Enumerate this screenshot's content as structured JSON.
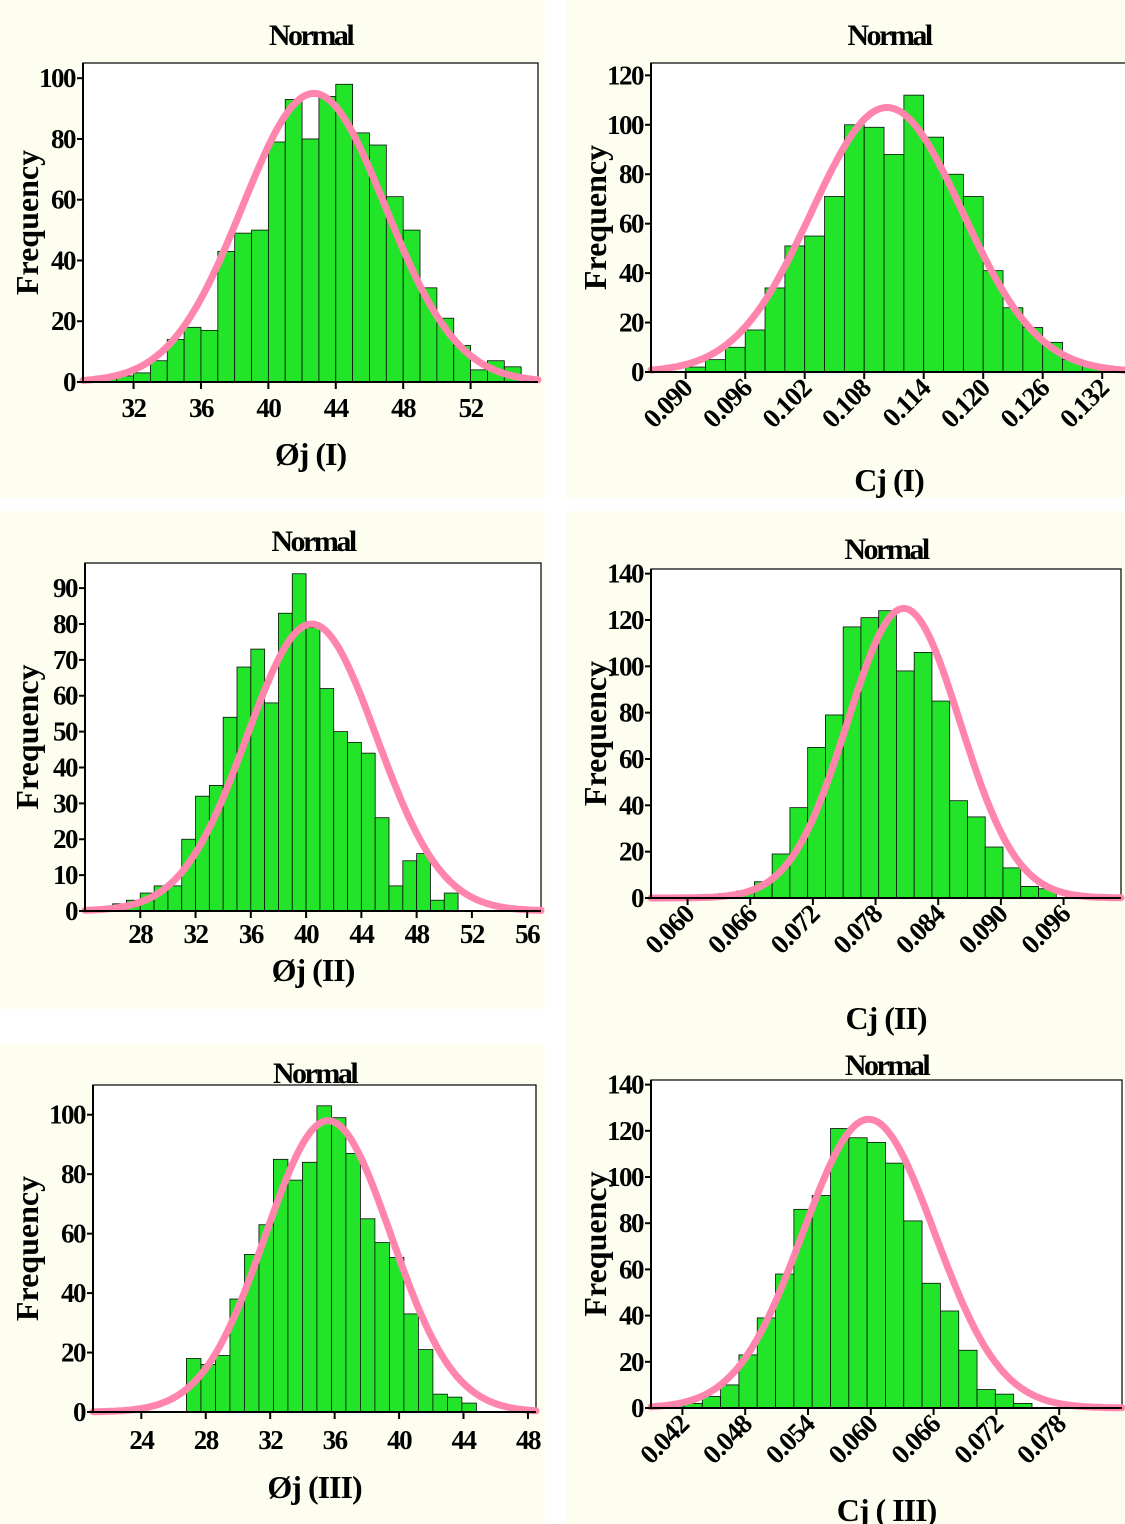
{
  "colors": {
    "bar": "#22e52a",
    "curve": "#ff85ad",
    "panel_bg": "#fdfdf0"
  },
  "chart_data": [
    {
      "type": "bar",
      "title": "Normal",
      "xlabel": "Øj  (I)",
      "ylabel": "Frequency",
      "xlim": [
        29,
        56
      ],
      "ylim": [
        0,
        105
      ],
      "x_ticks": [
        "32",
        "36",
        "40",
        "44",
        "48",
        "52"
      ],
      "y_ticks": [
        "0",
        "20",
        "40",
        "60",
        "80",
        "100"
      ],
      "bin_start": 30,
      "bin_width": 1,
      "values": [
        1,
        2,
        3,
        7,
        14,
        18,
        17,
        43,
        49,
        50,
        79,
        93,
        80,
        94,
        98,
        82,
        78,
        61,
        50,
        31,
        21,
        12,
        4,
        7,
        5
      ],
      "fit": {
        "mean": 42.7,
        "sd": 4.25,
        "peak": 95
      }
    },
    {
      "type": "bar",
      "title": "Normal",
      "xlabel": "Cj  (I)",
      "ylabel": "Frequency",
      "xlim": [
        0.0865,
        0.1345
      ],
      "ylim": [
        0,
        125
      ],
      "x_ticks": [
        "0.090",
        "0.096",
        "0.102",
        "0.108",
        "0.114",
        "0.120",
        "0.126",
        "0.132"
      ],
      "y_ticks": [
        "0",
        "20",
        "40",
        "60",
        "80",
        "100",
        "120"
      ],
      "bin_start": 0.09,
      "bin_width": 0.002,
      "values": [
        2,
        5,
        10,
        17,
        34,
        51,
        55,
        71,
        100,
        99,
        88,
        112,
        95,
        80,
        71,
        41,
        26,
        18,
        12,
        5,
        3,
        1
      ],
      "fit": {
        "mean": 0.1103,
        "sd": 0.0076,
        "peak": 107
      }
    },
    {
      "type": "bar",
      "title": "Normal",
      "xlabel": "Øj  (II)",
      "ylabel": "Frequency",
      "xlim": [
        24,
        57
      ],
      "ylim": [
        0,
        97
      ],
      "x_ticks": [
        "28",
        "32",
        "36",
        "40",
        "44",
        "48",
        "52",
        "56"
      ],
      "y_ticks": [
        "0",
        "10",
        "20",
        "30",
        "40",
        "50",
        "60",
        "70",
        "80",
        "90"
      ],
      "bin_start": 26,
      "bin_width": 1,
      "values": [
        2,
        3,
        5,
        7,
        7,
        20,
        32,
        35,
        54,
        68,
        73,
        58,
        83,
        94,
        79,
        62,
        50,
        47,
        44,
        26,
        7,
        14,
        16,
        3,
        5
      ],
      "fit": {
        "mean": 40.4,
        "sd": 4.7,
        "peak": 80
      }
    },
    {
      "type": "bar",
      "title": "Normal",
      "xlabel": "Cj  (II)",
      "ylabel": "Frequency",
      "xlim": [
        0.0565,
        0.1015
      ],
      "ylim": [
        0,
        142
      ],
      "x_ticks": [
        "0.060",
        "0.066",
        "0.072",
        "0.078",
        "0.084",
        "0.090",
        "0.096"
      ],
      "y_ticks": [
        "0",
        "20",
        "40",
        "60",
        "80",
        "100",
        "120",
        "140"
      ],
      "bin_start": 0.063,
      "bin_width": 0.0017,
      "values": [
        2,
        3,
        7,
        19,
        39,
        65,
        79,
        117,
        121,
        124,
        98,
        106,
        85,
        42,
        35,
        22,
        13,
        5,
        4
      ],
      "fit": {
        "mean": 0.0807,
        "sd": 0.0054,
        "peak": 125
      }
    },
    {
      "type": "bar",
      "title": "Normal",
      "xlabel": "Øj  (III)",
      "ylabel": "Frequency",
      "xlim": [
        21,
        48.5
      ],
      "ylim": [
        0,
        110
      ],
      "x_ticks": [
        "24",
        "28",
        "32",
        "36",
        "40",
        "44",
        "48"
      ],
      "y_ticks": [
        "0",
        "20",
        "40",
        "60",
        "80",
        "100"
      ],
      "bin_start": 26.8,
      "bin_width": 0.9,
      "values": [
        18,
        16,
        19,
        38,
        53,
        63,
        85,
        78,
        84,
        103,
        99,
        87,
        65,
        57,
        52,
        33,
        21,
        6,
        5,
        3
      ],
      "fit": {
        "mean": 35.6,
        "sd": 3.9,
        "peak": 98
      }
    },
    {
      "type": "bar",
      "title": "Normal",
      "xlabel": "Cj ( III)",
      "ylabel": "Frequency",
      "xlim": [
        0.039,
        0.084
      ],
      "ylim": [
        0,
        142
      ],
      "x_ticks": [
        "0.042",
        "0.048",
        "0.054",
        "0.060",
        "0.066",
        "0.072",
        "0.078"
      ],
      "y_ticks": [
        "0",
        "20",
        "40",
        "60",
        "80",
        "100",
        "120",
        "140"
      ],
      "bin_start": 0.0404,
      "bin_width": 0.00175,
      "values": [
        1,
        2,
        5,
        10,
        23,
        39,
        58,
        86,
        92,
        121,
        117,
        115,
        106,
        81,
        54,
        42,
        25,
        8,
        6,
        2
      ],
      "fit": {
        "mean": 0.0598,
        "sd": 0.0063,
        "peak": 125
      }
    }
  ]
}
